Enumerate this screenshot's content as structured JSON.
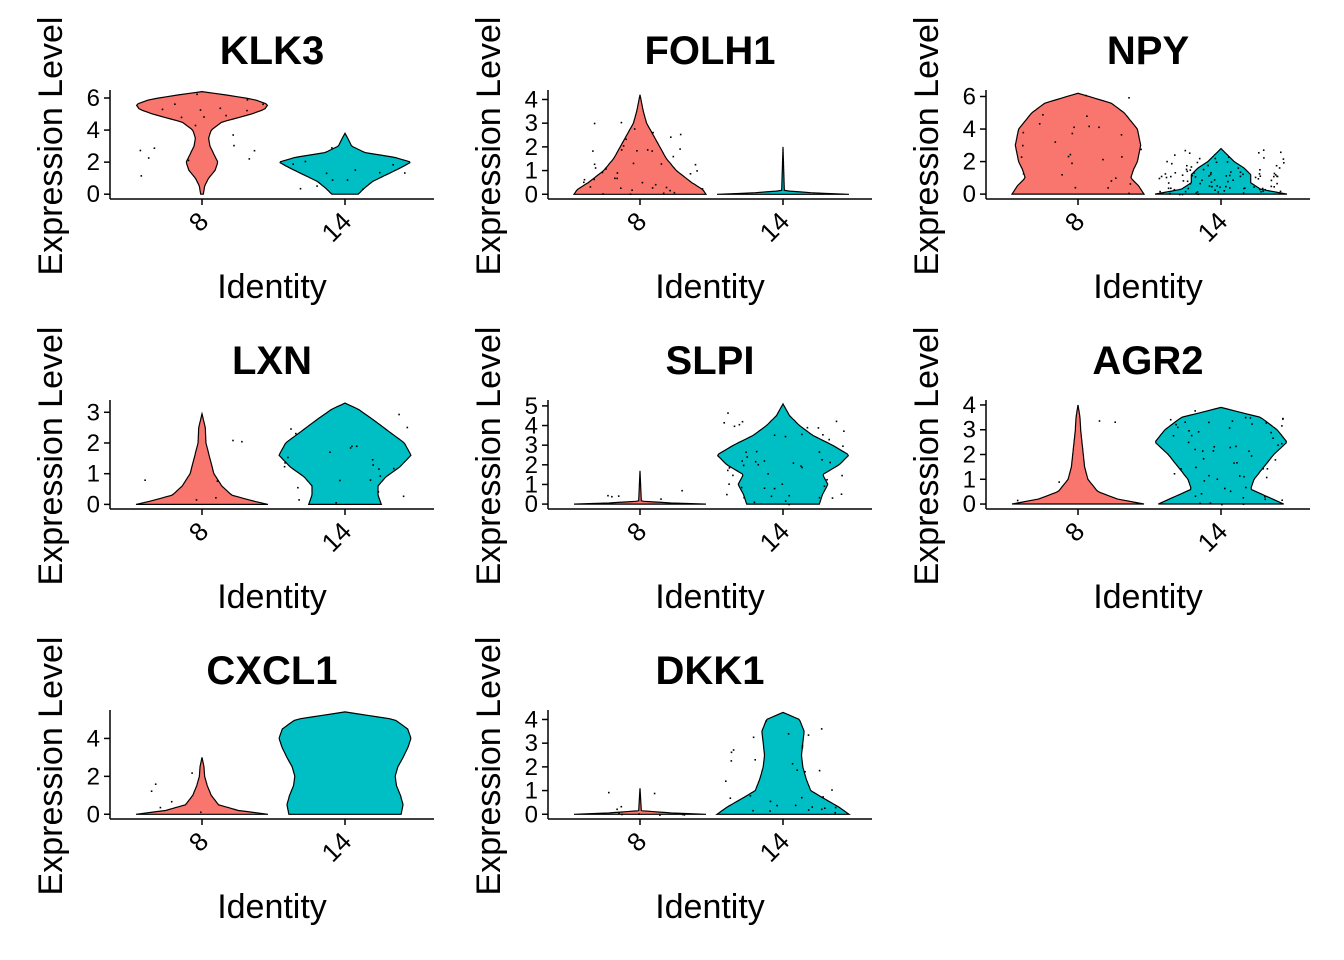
{
  "chart_data": [
    {
      "type": "violin",
      "title": "KLK3",
      "xlabel": "Identity",
      "ylabel": "Expression Level",
      "categories": [
        "8",
        "14"
      ],
      "yticks": [
        0,
        2,
        4,
        6
      ],
      "ylim": [
        -0.3,
        6.5
      ],
      "fill_colors": [
        "#F8766D",
        "#00BFC4"
      ],
      "distributions": [
        {
          "max": 6.4,
          "profile": [
            [
              0.0,
              0.02
            ],
            [
              0.5,
              0.04
            ],
            [
              1.0,
              0.1
            ],
            [
              1.5,
              0.2
            ],
            [
              2.0,
              0.24
            ],
            [
              2.5,
              0.18
            ],
            [
              3.0,
              0.12
            ],
            [
              3.5,
              0.1
            ],
            [
              4.0,
              0.14
            ],
            [
              4.5,
              0.3
            ],
            [
              5.0,
              0.75
            ],
            [
              5.3,
              0.95
            ],
            [
              5.6,
              1.0
            ],
            [
              5.9,
              0.8
            ],
            [
              6.2,
              0.35
            ],
            [
              6.4,
              0.0
            ]
          ]
        },
        {
          "max": 3.8,
          "profile": [
            [
              0.0,
              0.2
            ],
            [
              0.4,
              0.3
            ],
            [
              0.8,
              0.42
            ],
            [
              1.2,
              0.62
            ],
            [
              1.6,
              0.82
            ],
            [
              2.0,
              1.0
            ],
            [
              2.3,
              0.75
            ],
            [
              2.6,
              0.3
            ],
            [
              3.0,
              0.1
            ],
            [
              3.5,
              0.04
            ],
            [
              3.8,
              0.0
            ]
          ]
        }
      ]
    },
    {
      "type": "violin",
      "title": "FOLH1",
      "xlabel": "Identity",
      "ylabel": "Expression Level",
      "categories": [
        "8",
        "14"
      ],
      "yticks": [
        0,
        1,
        2,
        3,
        4
      ],
      "ylim": [
        -0.2,
        4.4
      ],
      "fill_colors": [
        "#F8766D",
        "#00BFC4"
      ],
      "distributions": [
        {
          "max": 4.2,
          "profile": [
            [
              0.0,
              1.0
            ],
            [
              0.2,
              0.95
            ],
            [
              0.5,
              0.78
            ],
            [
              1.0,
              0.55
            ],
            [
              1.5,
              0.4
            ],
            [
              2.0,
              0.3
            ],
            [
              2.5,
              0.2
            ],
            [
              3.0,
              0.1
            ],
            [
              3.5,
              0.05
            ],
            [
              4.2,
              0.0
            ]
          ]
        },
        {
          "max": 2.0,
          "profile": [
            [
              0.0,
              1.0
            ],
            [
              0.05,
              0.5
            ],
            [
              0.15,
              0.02
            ],
            [
              2.0,
              0.0
            ]
          ]
        }
      ]
    },
    {
      "type": "violin",
      "title": "NPY",
      "xlabel": "Identity",
      "ylabel": "Expression Level",
      "categories": [
        "8",
        "14"
      ],
      "yticks": [
        0,
        2,
        4,
        6
      ],
      "ylim": [
        -0.3,
        6.4
      ],
      "fill_colors": [
        "#F8766D",
        "#00BFC4"
      ],
      "distributions": [
        {
          "max": 6.2,
          "profile": [
            [
              0.0,
              1.0
            ],
            [
              0.5,
              0.92
            ],
            [
              1.0,
              0.8
            ],
            [
              1.5,
              0.84
            ],
            [
              2.0,
              0.9
            ],
            [
              3.0,
              0.95
            ],
            [
              4.0,
              0.9
            ],
            [
              5.0,
              0.7
            ],
            [
              5.6,
              0.5
            ],
            [
              6.2,
              0.0
            ]
          ]
        },
        {
          "max": 2.8,
          "profile": [
            [
              0.0,
              1.0
            ],
            [
              0.3,
              0.6
            ],
            [
              0.7,
              0.45
            ],
            [
              1.2,
              0.45
            ],
            [
              1.6,
              0.35
            ],
            [
              2.0,
              0.2
            ],
            [
              2.4,
              0.1
            ],
            [
              2.8,
              0.0
            ]
          ]
        }
      ]
    },
    {
      "type": "violin",
      "title": "LXN",
      "xlabel": "Identity",
      "ylabel": "Expression Level",
      "categories": [
        "8",
        "14"
      ],
      "yticks": [
        0,
        1,
        2,
        3
      ],
      "ylim": [
        -0.15,
        3.4
      ],
      "fill_colors": [
        "#F8766D",
        "#00BFC4"
      ],
      "distributions": [
        {
          "max": 2.95,
          "profile": [
            [
              0.0,
              1.0
            ],
            [
              0.1,
              0.8
            ],
            [
              0.3,
              0.45
            ],
            [
              0.6,
              0.3
            ],
            [
              1.0,
              0.18
            ],
            [
              1.5,
              0.12
            ],
            [
              2.0,
              0.06
            ],
            [
              2.5,
              0.05
            ],
            [
              2.95,
              0.0
            ]
          ]
        },
        {
          "max": 3.3,
          "profile": [
            [
              0.0,
              0.55
            ],
            [
              0.3,
              0.5
            ],
            [
              0.6,
              0.5
            ],
            [
              0.9,
              0.62
            ],
            [
              1.2,
              0.82
            ],
            [
              1.6,
              1.0
            ],
            [
              2.0,
              0.9
            ],
            [
              2.4,
              0.65
            ],
            [
              2.8,
              0.4
            ],
            [
              3.1,
              0.2
            ],
            [
              3.3,
              0.0
            ]
          ]
        }
      ]
    },
    {
      "type": "violin",
      "title": "SLPI",
      "xlabel": "Identity",
      "ylabel": "Expression Level",
      "categories": [
        "8",
        "14"
      ],
      "yticks": [
        0,
        1,
        2,
        3,
        4,
        5
      ],
      "ylim": [
        -0.25,
        5.3
      ],
      "fill_colors": [
        "#F8766D",
        "#00BFC4"
      ],
      "distributions": [
        {
          "max": 1.7,
          "profile": [
            [
              0.0,
              1.0
            ],
            [
              0.05,
              0.5
            ],
            [
              0.15,
              0.02
            ],
            [
              1.7,
              0.0
            ]
          ]
        },
        {
          "max": 5.1,
          "profile": [
            [
              0.0,
              0.55
            ],
            [
              0.5,
              0.6
            ],
            [
              1.0,
              0.68
            ],
            [
              1.5,
              0.6
            ],
            [
              2.0,
              0.85
            ],
            [
              2.5,
              1.0
            ],
            [
              3.0,
              0.75
            ],
            [
              3.5,
              0.45
            ],
            [
              4.0,
              0.25
            ],
            [
              4.5,
              0.1
            ],
            [
              5.1,
              0.0
            ]
          ]
        }
      ]
    },
    {
      "type": "violin",
      "title": "AGR2",
      "xlabel": "Identity",
      "ylabel": "Expression Level",
      "categories": [
        "8",
        "14"
      ],
      "yticks": [
        0,
        1,
        2,
        3,
        4
      ],
      "ylim": [
        -0.2,
        4.2
      ],
      "fill_colors": [
        "#F8766D",
        "#00BFC4"
      ],
      "distributions": [
        {
          "max": 4.0,
          "profile": [
            [
              0.0,
              1.0
            ],
            [
              0.2,
              0.6
            ],
            [
              0.5,
              0.3
            ],
            [
              1.0,
              0.15
            ],
            [
              1.5,
              0.1
            ],
            [
              2.0,
              0.08
            ],
            [
              2.5,
              0.06
            ],
            [
              3.0,
              0.04
            ],
            [
              3.5,
              0.03
            ],
            [
              4.0,
              0.0
            ]
          ]
        },
        {
          "max": 3.9,
          "profile": [
            [
              0.0,
              0.95
            ],
            [
              0.3,
              0.7
            ],
            [
              0.6,
              0.45
            ],
            [
              1.0,
              0.5
            ],
            [
              1.5,
              0.65
            ],
            [
              2.0,
              0.8
            ],
            [
              2.5,
              1.0
            ],
            [
              3.0,
              0.85
            ],
            [
              3.5,
              0.6
            ],
            [
              3.9,
              0.0
            ]
          ]
        }
      ]
    },
    {
      "type": "violin",
      "title": "CXCL1",
      "xlabel": "Identity",
      "ylabel": "Expression Level",
      "categories": [
        "8",
        "14"
      ],
      "yticks": [
        0,
        2,
        4
      ],
      "ylim": [
        -0.25,
        5.5
      ],
      "fill_colors": [
        "#F8766D",
        "#00BFC4"
      ],
      "distributions": [
        {
          "max": 3.0,
          "profile": [
            [
              0.0,
              1.0
            ],
            [
              0.2,
              0.55
            ],
            [
              0.5,
              0.25
            ],
            [
              1.0,
              0.14
            ],
            [
              1.5,
              0.08
            ],
            [
              2.0,
              0.04
            ],
            [
              2.5,
              0.03
            ],
            [
              3.0,
              0.0
            ]
          ]
        },
        {
          "max": 5.4,
          "profile": [
            [
              0.0,
              0.85
            ],
            [
              0.5,
              0.88
            ],
            [
              1.0,
              0.84
            ],
            [
              1.5,
              0.78
            ],
            [
              2.0,
              0.76
            ],
            [
              2.5,
              0.8
            ],
            [
              3.0,
              0.88
            ],
            [
              3.5,
              0.95
            ],
            [
              4.0,
              1.0
            ],
            [
              4.5,
              0.95
            ],
            [
              5.0,
              0.75
            ],
            [
              5.4,
              0.0
            ]
          ]
        }
      ]
    },
    {
      "type": "violin",
      "title": "DKK1",
      "xlabel": "Identity",
      "ylabel": "Expression Level",
      "categories": [
        "8",
        "14"
      ],
      "yticks": [
        0,
        1,
        2,
        3,
        4
      ],
      "ylim": [
        -0.2,
        4.4
      ],
      "fill_colors": [
        "#F8766D",
        "#00BFC4"
      ],
      "distributions": [
        {
          "max": 1.1,
          "profile": [
            [
              0.0,
              1.0
            ],
            [
              0.05,
              0.5
            ],
            [
              0.15,
              0.02
            ],
            [
              1.1,
              0.0
            ]
          ]
        },
        {
          "max": 4.3,
          "profile": [
            [
              0.0,
              1.0
            ],
            [
              0.3,
              0.85
            ],
            [
              0.7,
              0.6
            ],
            [
              1.0,
              0.42
            ],
            [
              1.5,
              0.35
            ],
            [
              2.0,
              0.3
            ],
            [
              2.5,
              0.28
            ],
            [
              3.0,
              0.3
            ],
            [
              3.5,
              0.32
            ],
            [
              4.0,
              0.25
            ],
            [
              4.3,
              0.0
            ]
          ]
        }
      ]
    }
  ]
}
